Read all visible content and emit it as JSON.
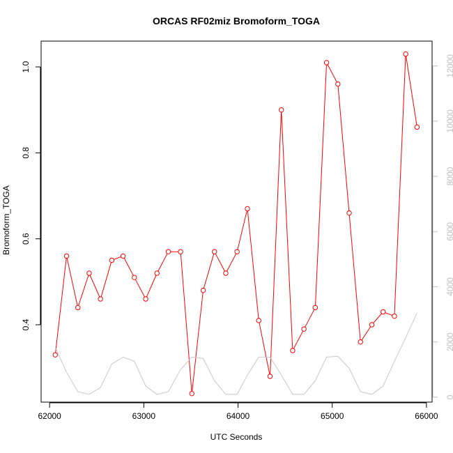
{
  "chart_data": {
    "type": "line",
    "title": "ORCAS RF02miz Bromoform_TOGA",
    "xlabel": "UTC Seconds",
    "ylabel": "Bromoform_TOGA",
    "xlim": [
      61910,
      66060
    ],
    "ylim": [
      0.22,
      1.06
    ],
    "y2lim": [
      -180,
      12900
    ],
    "x_ticks": [
      "62000",
      "63000",
      "64000",
      "65000",
      "66000"
    ],
    "y_ticks": [
      "0.4",
      "0.6",
      "0.8",
      "1.0"
    ],
    "y2_ticks": [
      "0",
      "2000",
      "4000",
      "6000",
      "8000",
      "10000",
      "12000"
    ],
    "series": [
      {
        "axis": "left",
        "color": "#ff0000",
        "marker": "open-circle",
        "x": [
          62060,
          62180,
          62300,
          62420,
          62540,
          62660,
          62780,
          62900,
          63020,
          63140,
          63260,
          63390,
          63510,
          63630,
          63750,
          63870,
          63990,
          64100,
          64220,
          64340,
          64460,
          64580,
          64700,
          64820,
          64940,
          65060,
          65180,
          65300,
          65420,
          65540,
          65660,
          65780,
          65900
        ],
        "values": [
          0.33,
          0.56,
          0.44,
          0.52,
          0.46,
          0.55,
          0.56,
          0.51,
          0.46,
          0.52,
          0.57,
          0.57,
          0.24,
          0.48,
          0.57,
          0.52,
          0.57,
          0.67,
          0.41,
          0.28,
          0.9,
          0.34,
          0.39,
          0.44,
          1.01,
          0.96,
          0.66,
          0.36,
          0.4,
          0.43,
          0.42,
          1.03,
          0.86
        ]
      },
      {
        "axis": "right",
        "color": "#c8c8c8",
        "marker": "none",
        "x": [
          62060,
          62180,
          62300,
          62420,
          62540,
          62660,
          62780,
          62900,
          63020,
          63140,
          63260,
          63390,
          63510,
          63630,
          63750,
          63870,
          63990,
          64100,
          64220,
          64340,
          64460,
          64580,
          64700,
          64820,
          64940,
          65060,
          65180,
          65300,
          65420,
          65540,
          65660,
          65780,
          65900
        ],
        "values": [
          1800,
          900,
          200,
          100,
          350,
          1200,
          1450,
          1300,
          400,
          100,
          200,
          1000,
          1450,
          1400,
          600,
          100,
          100,
          800,
          1450,
          1450,
          800,
          100,
          100,
          600,
          1450,
          1480,
          1050,
          200,
          100,
          400,
          1300,
          2150,
          3050
        ]
      }
    ],
    "grid": false,
    "legend": "none"
  }
}
